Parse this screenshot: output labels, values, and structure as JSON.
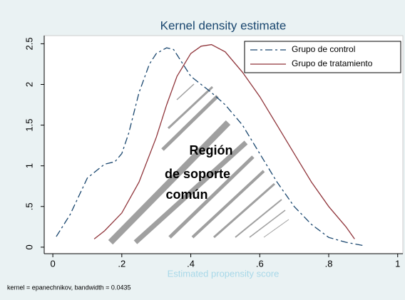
{
  "chart_data": {
    "type": "line",
    "title": "Kernel density estimate",
    "x_label": "Estimated propensity score",
    "note": "kernel = epanechnikov, bandwidth = 0.0435",
    "annotation": [
      "Región",
      "de soporte",
      "común"
    ],
    "xlim": [
      -0.025,
      1.015
    ],
    "ylim": [
      -0.08,
      2.6
    ],
    "xticks": [
      0,
      {
        "value": 0.2,
        "label": ".2"
      },
      {
        "value": 0.4,
        "label": ".4"
      },
      {
        "value": 0.6,
        "label": ".6"
      },
      {
        "value": 0.8,
        "label": ".8"
      },
      1
    ],
    "yticks": [
      0,
      {
        "value": 0.5,
        "label": ".5"
      },
      1,
      1.5,
      2,
      2.5
    ],
    "grid": false,
    "legend": "top-right",
    "series": [
      {
        "name": "Grupo de control",
        "color": "#1a476f",
        "dash": true,
        "x": [
          0.01,
          0.05,
          0.1,
          0.15,
          0.18,
          0.2,
          0.22,
          0.25,
          0.28,
          0.3,
          0.33,
          0.35,
          0.37,
          0.4,
          0.43,
          0.46,
          0.5,
          0.55,
          0.6,
          0.65,
          0.7,
          0.75,
          0.8,
          0.85,
          0.9
        ],
        "values": [
          0.13,
          0.4,
          0.85,
          1.02,
          1.05,
          1.15,
          1.4,
          1.9,
          2.25,
          2.38,
          2.45,
          2.43,
          2.3,
          2.1,
          2.0,
          1.9,
          1.75,
          1.5,
          1.15,
          0.8,
          0.5,
          0.28,
          0.12,
          0.06,
          0.02
        ]
      },
      {
        "name": "Grupo de tratamiento",
        "color": "#90353b",
        "dash": false,
        "x": [
          0.12,
          0.15,
          0.2,
          0.25,
          0.3,
          0.33,
          0.36,
          0.4,
          0.43,
          0.46,
          0.5,
          0.55,
          0.6,
          0.65,
          0.7,
          0.75,
          0.8,
          0.85,
          0.875
        ],
        "values": [
          0.1,
          0.2,
          0.42,
          0.8,
          1.35,
          1.75,
          2.1,
          2.38,
          2.47,
          2.49,
          2.4,
          2.15,
          1.85,
          1.5,
          1.15,
          0.8,
          0.5,
          0.25,
          0.1
        ]
      }
    ]
  }
}
